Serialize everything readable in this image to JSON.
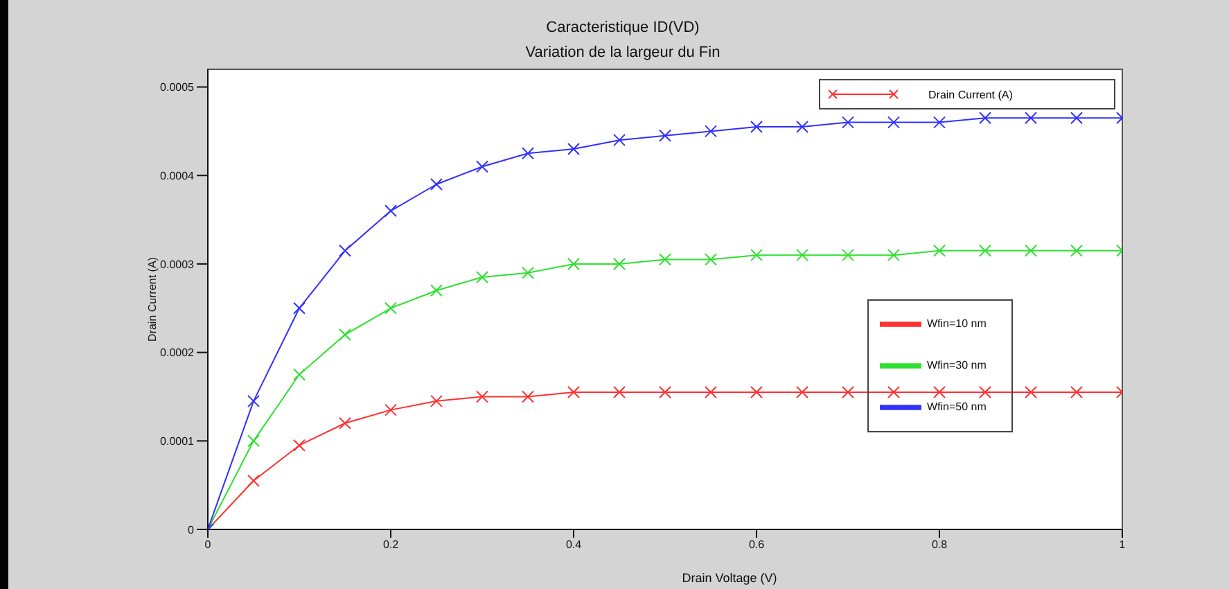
{
  "chart_data": {
    "type": "line",
    "title": "Caracteristique ID(VD)",
    "subtitle": "Variation de la largeur du Fin",
    "xlabel": "Drain Voltage (V)",
    "ylabel": "Drain Current (A)",
    "x": [
      0,
      0.05,
      0.1,
      0.15,
      0.2,
      0.25,
      0.3,
      0.35,
      0.4,
      0.45,
      0.5,
      0.55,
      0.6,
      0.65,
      0.7,
      0.75,
      0.8,
      0.85,
      0.9,
      0.95,
      1
    ],
    "series": [
      {
        "name": "Wfin=10 nm",
        "color": "#ff3030",
        "values": [
          0,
          5.5e-05,
          9.5e-05,
          0.00012,
          0.000135,
          0.000145,
          0.00015,
          0.00015,
          0.000155,
          0.000155,
          0.000155,
          0.000155,
          0.000155,
          0.000155,
          0.000155,
          0.000155,
          0.000155,
          0.000155,
          0.000155,
          0.000155,
          0.000155
        ]
      },
      {
        "name": "Wfin=30 nm",
        "color": "#30e030",
        "values": [
          0,
          0.0001,
          0.000175,
          0.00022,
          0.00025,
          0.00027,
          0.000285,
          0.00029,
          0.0003,
          0.0003,
          0.000305,
          0.000305,
          0.00031,
          0.00031,
          0.00031,
          0.00031,
          0.000315,
          0.000315,
          0.000315,
          0.000315,
          0.000315
        ]
      },
      {
        "name": "Wfin=50 nm",
        "color": "#3030ff",
        "values": [
          0,
          0.000145,
          0.00025,
          0.000315,
          0.00036,
          0.00039,
          0.00041,
          0.000425,
          0.00043,
          0.00044,
          0.000445,
          0.00045,
          0.000455,
          0.000455,
          0.00046,
          0.00046,
          0.00046,
          0.000465,
          0.000465,
          0.000465,
          0.000465
        ]
      }
    ],
    "annotations": [
      "Drain Current (A)"
    ],
    "xlim": [
      0,
      1
    ],
    "xticks": [
      0,
      0.2,
      0.4,
      0.6,
      0.8,
      1
    ],
    "ylim": [
      0,
      0.00052
    ],
    "yticks": [
      0,
      0.0001,
      0.0002,
      0.0003,
      0.0004,
      0.0005
    ],
    "legend": "right",
    "marker": "cross",
    "line_style": "solid"
  }
}
